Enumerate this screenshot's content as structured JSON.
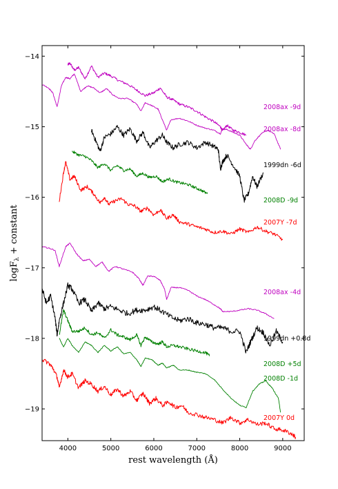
{
  "chart_data": {
    "type": "line",
    "xlabel": "rest wavelength (Å)",
    "ylabel_main": "logF",
    "ylabel_sub": "λ",
    "ylabel_tail": "  + constant",
    "xlim": [
      3400,
      9500
    ],
    "ylim": [
      -19.45,
      -13.85
    ],
    "x_ticks": [
      4000,
      5000,
      6000,
      7000,
      8000,
      9000
    ],
    "y_ticks": [
      -14,
      -15,
      -16,
      -17,
      -18,
      -19
    ],
    "grid": false,
    "colors": {
      "magenta": "#bf00bf",
      "black": "#000000",
      "green": "#008000",
      "red": "#ff0000"
    },
    "series": [
      {
        "name": "2008ax -9d",
        "color": "magenta",
        "noise": 0.018,
        "x": [
          4000,
          4050,
          4150,
          4250,
          4400,
          4550,
          4700,
          4850,
          5000,
          5200,
          5400,
          5600,
          5800,
          6000,
          6150,
          6300,
          6450,
          6600,
          6800,
          7000,
          7200,
          7400,
          7550,
          7600,
          7700,
          7850,
          8000,
          8150
        ],
        "y": [
          -14.12,
          -14.1,
          -14.2,
          -14.16,
          -14.32,
          -14.14,
          -14.3,
          -14.24,
          -14.28,
          -14.35,
          -14.4,
          -14.48,
          -14.56,
          -14.52,
          -14.45,
          -14.58,
          -14.62,
          -14.68,
          -14.72,
          -14.78,
          -14.86,
          -14.93,
          -15.0,
          -15.06,
          -14.98,
          -15.05,
          -15.08,
          -15.12
        ]
      },
      {
        "name": "2008ax -8d",
        "color": "magenta",
        "noise": 0.008,
        "x": [
          3400,
          3550,
          3650,
          3750,
          3850,
          3950,
          4050,
          4150,
          4300,
          4450,
          4600,
          4750,
          4900,
          5050,
          5200,
          5400,
          5600,
          5700,
          5800,
          5950,
          6100,
          6200,
          6300,
          6400,
          6600,
          6800,
          7000,
          7200,
          7400,
          7550,
          7600,
          7700,
          7850,
          8000,
          8150,
          8250,
          8350,
          8500,
          8650,
          8800,
          8950
        ],
        "y": [
          -14.4,
          -14.45,
          -14.52,
          -14.72,
          -14.42,
          -14.3,
          -14.32,
          -14.25,
          -14.5,
          -14.42,
          -14.45,
          -14.52,
          -14.46,
          -14.55,
          -14.6,
          -14.6,
          -14.68,
          -14.78,
          -14.66,
          -14.7,
          -14.75,
          -14.9,
          -15.05,
          -14.9,
          -14.88,
          -14.92,
          -14.98,
          -15.02,
          -15.05,
          -15.1,
          -15.03,
          -15.04,
          -15.08,
          -15.12,
          -15.25,
          -15.32,
          -15.2,
          -15.1,
          -15.05,
          -15.1,
          -15.32
        ]
      },
      {
        "name": "1999dn -6d",
        "color": "black",
        "noise": 0.035,
        "x": [
          4550,
          4650,
          4750,
          4850,
          5000,
          5150,
          5300,
          5450,
          5600,
          5750,
          5900,
          6050,
          6200,
          6300,
          6450,
          6600,
          6800,
          7000,
          7200,
          7400,
          7500,
          7550,
          7600,
          7700,
          7850,
          8000,
          8100,
          8200,
          8300,
          8400,
          8550
        ],
        "y": [
          -15.05,
          -15.2,
          -15.35,
          -15.15,
          -15.1,
          -15.0,
          -15.12,
          -15.03,
          -15.2,
          -15.08,
          -15.3,
          -15.2,
          -15.12,
          -15.22,
          -15.3,
          -15.25,
          -15.22,
          -15.3,
          -15.22,
          -15.28,
          -15.32,
          -15.6,
          -15.5,
          -15.4,
          -15.55,
          -15.7,
          -16.05,
          -15.95,
          -15.7,
          -15.85,
          -15.65
        ]
      },
      {
        "name": "2008D -9d",
        "color": "green",
        "noise": 0.02,
        "x": [
          4100,
          4250,
          4400,
          4550,
          4700,
          4850,
          5000,
          5150,
          5300,
          5450,
          5600,
          5750,
          5900,
          6050,
          6200,
          6350,
          6500,
          6650,
          6800,
          6950,
          7100,
          7250
        ],
        "y": [
          -15.35,
          -15.4,
          -15.42,
          -15.48,
          -15.58,
          -15.52,
          -15.62,
          -15.55,
          -15.62,
          -15.6,
          -15.7,
          -15.66,
          -15.72,
          -15.7,
          -15.78,
          -15.74,
          -15.78,
          -15.8,
          -15.82,
          -15.86,
          -15.9,
          -15.95
        ]
      },
      {
        "name": "2007Y -7d",
        "color": "red",
        "noise": 0.025,
        "x": [
          3800,
          3900,
          3950,
          4050,
          4150,
          4300,
          4450,
          4600,
          4750,
          4850,
          4950,
          5100,
          5250,
          5400,
          5550,
          5700,
          5850,
          6000,
          6150,
          6300,
          6450,
          6600,
          6800,
          7000,
          7200,
          7400,
          7600,
          7800,
          8000,
          8200,
          8400,
          8600,
          8800,
          9000
        ],
        "y": [
          -16.05,
          -15.65,
          -15.5,
          -15.75,
          -15.7,
          -15.9,
          -15.85,
          -15.95,
          -16.08,
          -16.0,
          -16.1,
          -16.05,
          -16.02,
          -16.1,
          -16.12,
          -16.2,
          -16.15,
          -16.25,
          -16.18,
          -16.3,
          -16.25,
          -16.35,
          -16.38,
          -16.42,
          -16.45,
          -16.5,
          -16.48,
          -16.52,
          -16.45,
          -16.5,
          -16.42,
          -16.48,
          -16.52,
          -16.6
        ]
      },
      {
        "name": "2008ax -4d",
        "color": "magenta",
        "noise": 0.008,
        "x": [
          3400,
          3550,
          3700,
          3800,
          3950,
          4050,
          4200,
          4350,
          4500,
          4650,
          4800,
          4950,
          5100,
          5300,
          5500,
          5650,
          5750,
          5850,
          6000,
          6150,
          6250,
          6300,
          6400,
          6600,
          6800,
          7000,
          7200,
          7400,
          7550,
          7600,
          7800,
          8000,
          8200,
          8400,
          8600,
          8800
        ],
        "y": [
          -16.7,
          -16.72,
          -16.75,
          -16.98,
          -16.7,
          -16.65,
          -16.8,
          -16.9,
          -16.88,
          -16.98,
          -16.92,
          -17.05,
          -16.98,
          -17.02,
          -17.06,
          -17.15,
          -17.25,
          -17.12,
          -17.12,
          -17.18,
          -17.3,
          -17.45,
          -17.28,
          -17.28,
          -17.32,
          -17.4,
          -17.45,
          -17.52,
          -17.58,
          -17.62,
          -17.62,
          -17.6,
          -17.58,
          -17.6,
          -17.65,
          -17.72
        ]
      },
      {
        "name": "1999dn +0.8d",
        "color": "black",
        "noise": 0.04,
        "x": [
          3400,
          3500,
          3600,
          3700,
          3750,
          3800,
          3900,
          4000,
          4100,
          4250,
          4400,
          4550,
          4700,
          4850,
          5000,
          5200,
          5400,
          5600,
          5800,
          6000,
          6200,
          6400,
          6600,
          6800,
          7000,
          7200,
          7400,
          7600,
          7800,
          8000,
          8150,
          8250,
          8400,
          8550,
          8700,
          8850,
          9000
        ],
        "y": [
          -17.3,
          -17.5,
          -17.4,
          -17.7,
          -17.95,
          -17.75,
          -17.5,
          -17.25,
          -17.3,
          -17.5,
          -17.45,
          -17.62,
          -17.5,
          -17.58,
          -17.55,
          -17.6,
          -17.65,
          -17.6,
          -17.6,
          -17.55,
          -17.62,
          -17.7,
          -17.75,
          -17.72,
          -17.78,
          -17.8,
          -17.85,
          -17.85,
          -17.9,
          -17.9,
          -18.2,
          -18.05,
          -17.85,
          -17.92,
          -18.1,
          -17.9,
          -18.05
        ]
      },
      {
        "name": "2008D +5d",
        "color": "green",
        "noise": 0.022,
        "x": [
          3800,
          3900,
          4000,
          4100,
          4250,
          4400,
          4550,
          4700,
          4850,
          5000,
          5150,
          5300,
          5450,
          5600,
          5700,
          5800,
          5950,
          6100,
          6200,
          6300,
          6450,
          6600,
          6800,
          7000,
          7200,
          7300
        ],
        "y": [
          -17.95,
          -17.6,
          -17.75,
          -17.9,
          -17.9,
          -17.85,
          -17.95,
          -17.92,
          -18.0,
          -17.88,
          -17.95,
          -17.98,
          -18.02,
          -17.95,
          -18.1,
          -17.98,
          -18.05,
          -18.08,
          -18.05,
          -18.12,
          -18.1,
          -18.12,
          -18.15,
          -18.18,
          -18.2,
          -18.25
        ]
      },
      {
        "name": "2008D -1d",
        "color": "green",
        "noise": 0.006,
        "x": [
          3800,
          3900,
          4000,
          4100,
          4250,
          4400,
          4550,
          4700,
          4850,
          5000,
          5150,
          5300,
          5450,
          5600,
          5700,
          5800,
          5950,
          6100,
          6200,
          6300,
          6450,
          6600,
          6800,
          7000,
          7200,
          7400,
          7600,
          7800,
          8000,
          8150,
          8300,
          8450,
          8600,
          8750,
          8900,
          8950
        ],
        "y": [
          -18.0,
          -18.12,
          -18.0,
          -18.1,
          -18.2,
          -18.05,
          -18.1,
          -18.2,
          -18.1,
          -18.18,
          -18.12,
          -18.22,
          -18.2,
          -18.3,
          -18.4,
          -18.28,
          -18.3,
          -18.38,
          -18.35,
          -18.42,
          -18.38,
          -18.45,
          -18.45,
          -18.48,
          -18.5,
          -18.58,
          -18.72,
          -18.85,
          -18.95,
          -18.98,
          -18.75,
          -18.65,
          -18.6,
          -18.7,
          -18.85,
          -19.05
        ]
      },
      {
        "name": "2007Y 0d",
        "color": "red",
        "noise": 0.03,
        "x": [
          3400,
          3550,
          3650,
          3750,
          3800,
          3900,
          4000,
          4100,
          4250,
          4400,
          4550,
          4700,
          4850,
          5000,
          5150,
          5300,
          5450,
          5600,
          5750,
          5900,
          6050,
          6200,
          6350,
          6500,
          6650,
          6800,
          7000,
          7200,
          7400,
          7600,
          7800,
          8000,
          8200,
          8400,
          8600,
          8800,
          9000,
          9200,
          9300
        ],
        "y": [
          -18.3,
          -18.35,
          -18.42,
          -18.55,
          -18.7,
          -18.45,
          -18.55,
          -18.5,
          -18.7,
          -18.6,
          -18.65,
          -18.75,
          -18.68,
          -18.8,
          -18.72,
          -18.82,
          -18.75,
          -18.88,
          -18.78,
          -18.92,
          -18.85,
          -18.95,
          -18.9,
          -18.98,
          -18.95,
          -19.05,
          -19.08,
          -19.12,
          -19.15,
          -19.2,
          -19.12,
          -19.2,
          -19.15,
          -19.22,
          -19.2,
          -19.28,
          -19.3,
          -19.35,
          -19.4
        ]
      }
    ]
  }
}
